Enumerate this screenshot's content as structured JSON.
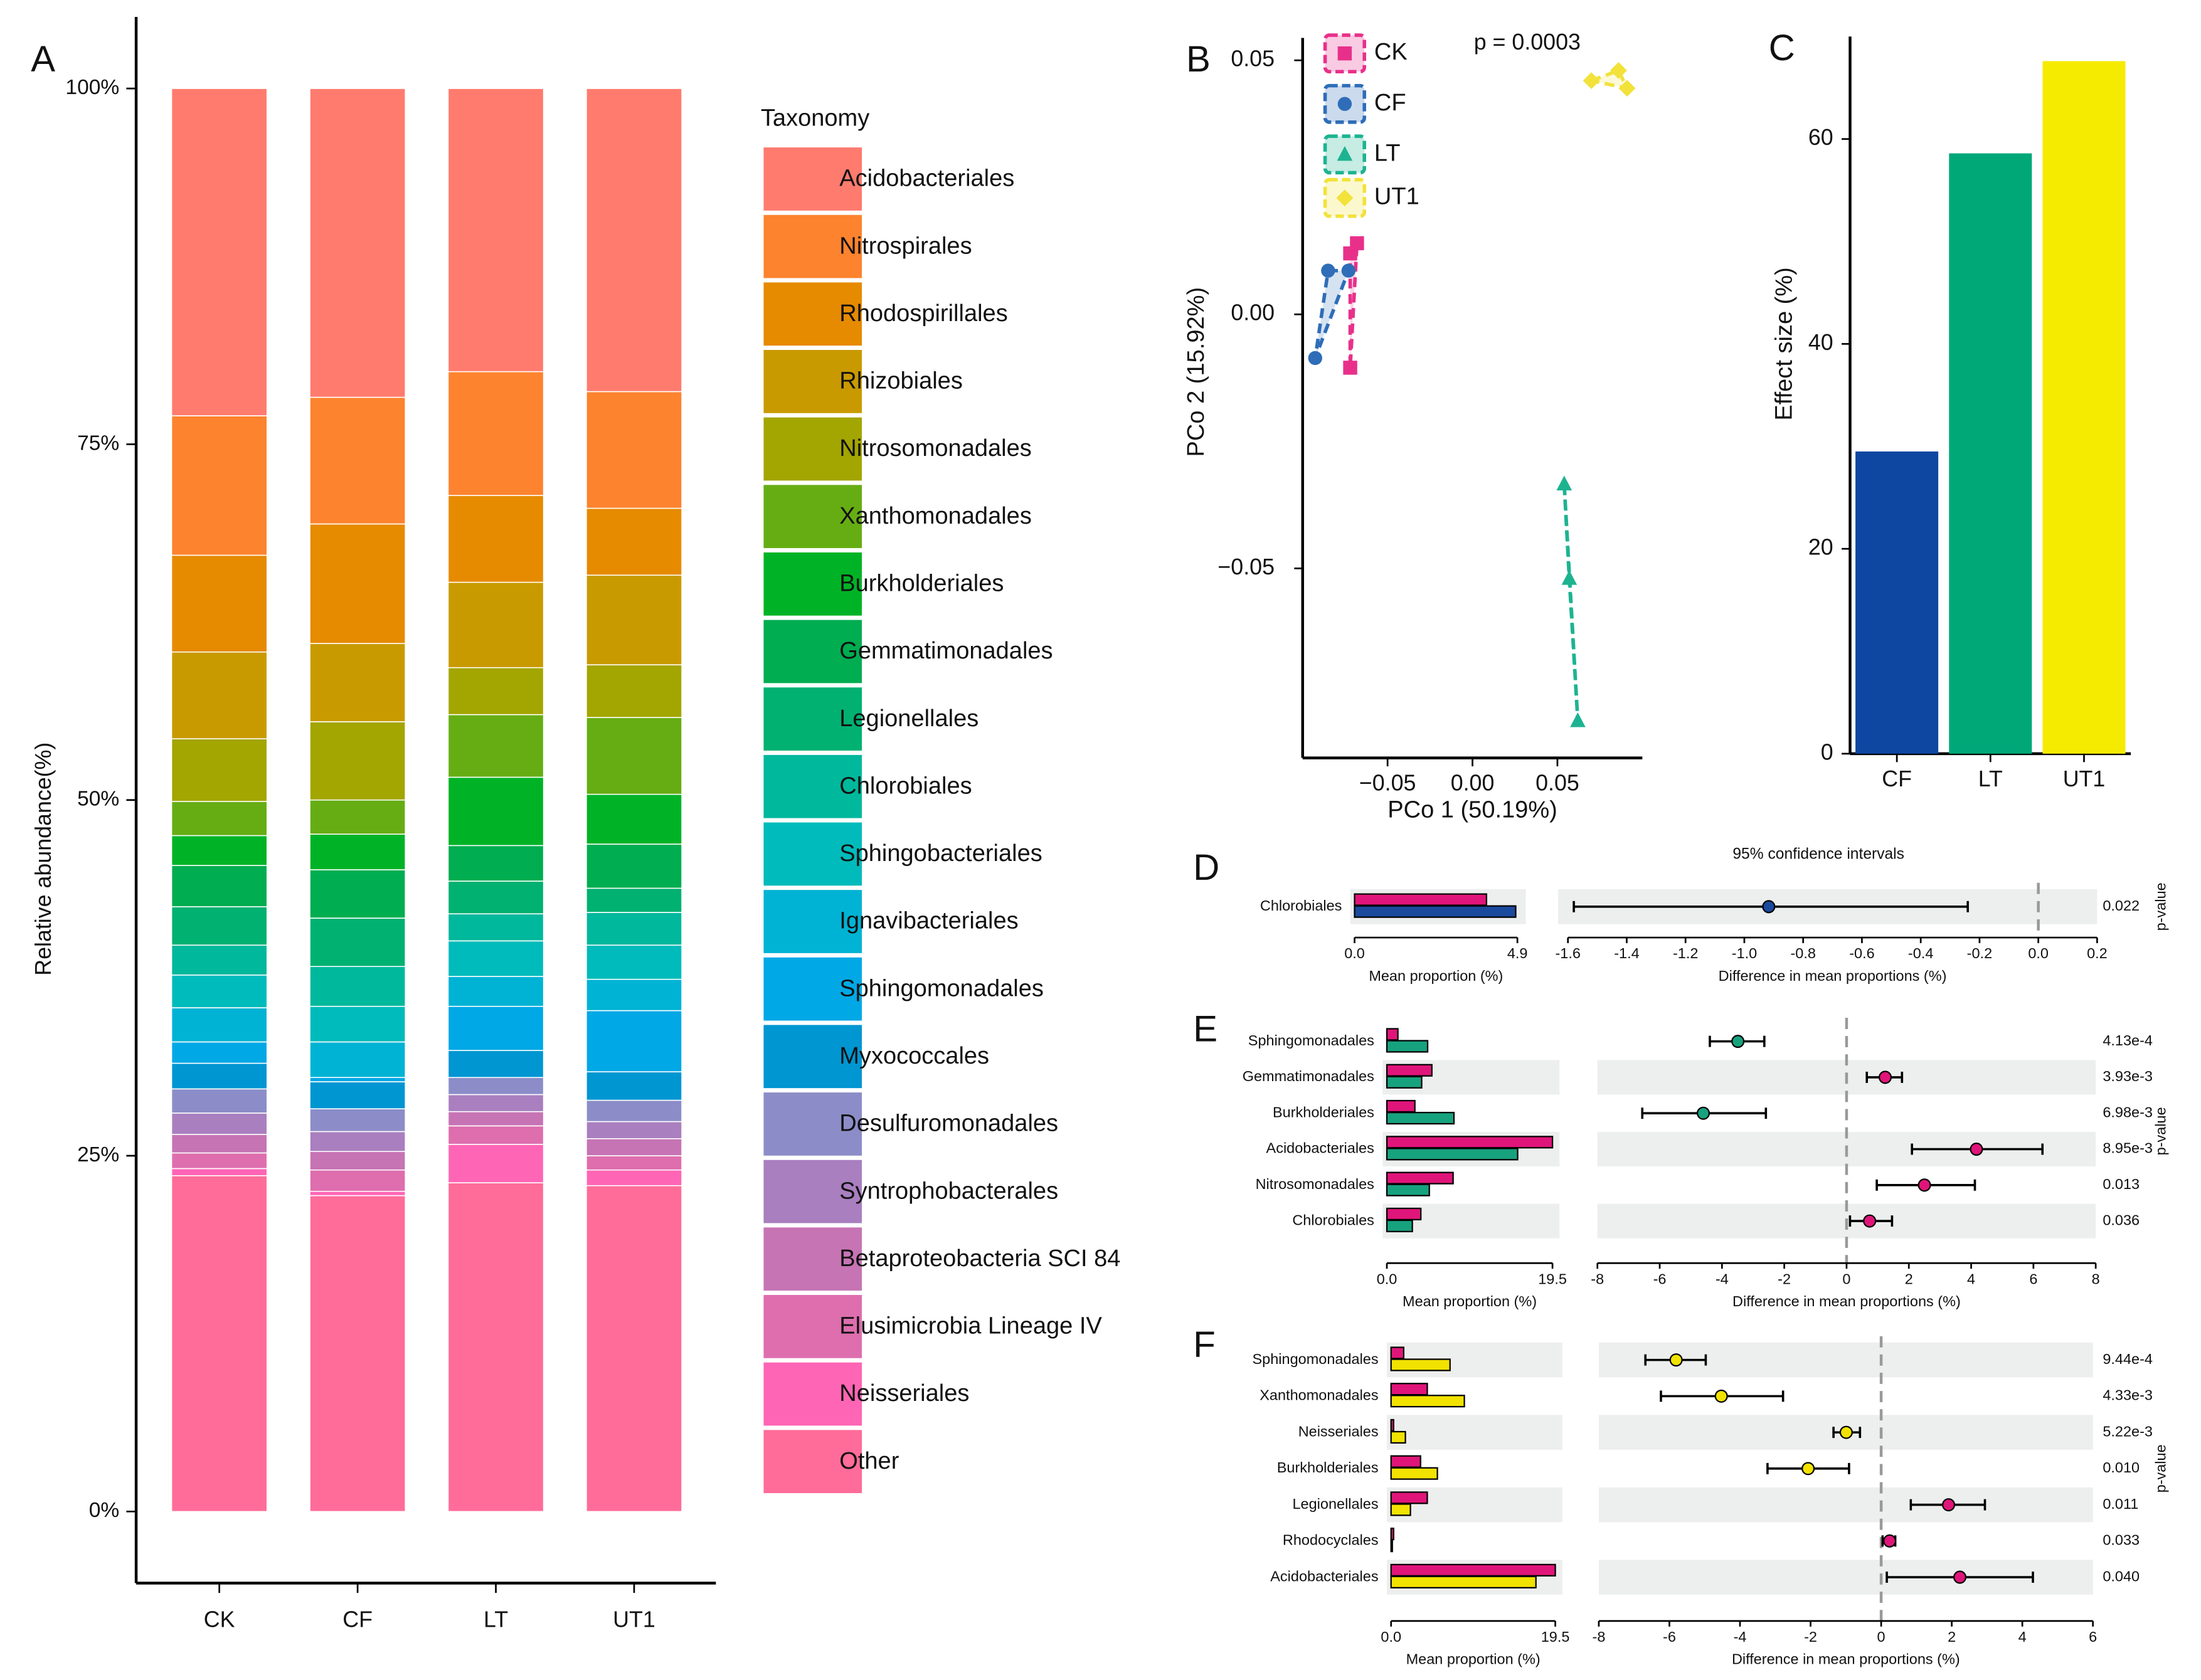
{
  "chart_data": [
    {
      "type": "stacked_bar",
      "panel_label": "A",
      "ylabel": "Relative abundance(%)",
      "legend_title": "Taxonomy",
      "categories": [
        "CK",
        "CF",
        "LT",
        "UT1"
      ],
      "ylim": [
        0,
        100
      ],
      "yticks": [
        {
          "value": 0,
          "label": "0%"
        },
        {
          "value": 25,
          "label": "25%"
        },
        {
          "value": 50,
          "label": "50%"
        },
        {
          "value": 75,
          "label": "75%"
        },
        {
          "value": 100,
          "label": "100%"
        }
      ],
      "series": [
        {
          "name": "Acidobacteriales",
          "color": "#FF7B6E",
          "values": [
            23.0,
            21.7,
            19.9,
            21.3
          ]
        },
        {
          "name": "Nitrospirales",
          "color": "#FD832E",
          "values": [
            9.8,
            8.9,
            8.7,
            8.2
          ]
        },
        {
          "name": "Rhodospirillales",
          "color": "#E68A00",
          "values": [
            6.8,
            8.4,
            6.1,
            4.7
          ]
        },
        {
          "name": "Rhizobiales",
          "color": "#C99A00",
          "values": [
            6.1,
            5.5,
            6.0,
            6.3
          ]
        },
        {
          "name": "Nitrosomonadales",
          "color": "#A3A500",
          "values": [
            4.4,
            5.5,
            3.3,
            3.7
          ]
        },
        {
          "name": "Xanthomonadales",
          "color": "#66AD14",
          "values": [
            2.4,
            2.4,
            4.4,
            5.4
          ]
        },
        {
          "name": "Burkholderiales",
          "color": "#00B326",
          "values": [
            2.1,
            2.5,
            4.8,
            3.5
          ]
        },
        {
          "name": "Gemmatimonadales",
          "color": "#00AD50",
          "values": [
            2.9,
            3.4,
            2.5,
            3.1
          ]
        },
        {
          "name": "Legionellales",
          "color": "#00B171",
          "values": [
            2.7,
            3.4,
            2.3,
            1.7
          ]
        },
        {
          "name": "Chlorobiales",
          "color": "#00B89C",
          "values": [
            2.1,
            2.8,
            1.9,
            2.3
          ]
        },
        {
          "name": "Sphingobacteriales",
          "color": "#00BBBB",
          "values": [
            2.3,
            2.5,
            2.5,
            2.4
          ]
        },
        {
          "name": "Ignavibacteriales",
          "color": "#00B3D4",
          "values": [
            2.4,
            2.5,
            2.1,
            2.2
          ]
        },
        {
          "name": "Sphingomonadales",
          "color": "#00A8E6",
          "values": [
            1.5,
            0.3,
            3.1,
            4.3
          ]
        },
        {
          "name": "Myxococcales",
          "color": "#0096D2",
          "values": [
            1.8,
            1.9,
            1.9,
            2.0
          ]
        },
        {
          "name": "Desulfuromonadales",
          "color": "#8C8DC8",
          "values": [
            1.7,
            1.6,
            1.2,
            1.5
          ]
        },
        {
          "name": "Syntrophobacterales",
          "color": "#A97FBF",
          "values": [
            1.5,
            1.4,
            1.2,
            1.2
          ]
        },
        {
          "name": "Betaproteobacteria SCI 84",
          "color": "#C674B4",
          "values": [
            1.3,
            1.3,
            1.0,
            1.2
          ]
        },
        {
          "name": "Elusimicrobia Lineage IV",
          "color": "#DE6EAE",
          "values": [
            1.1,
            1.5,
            1.3,
            1.0
          ]
        },
        {
          "name": "Neisseriales",
          "color": "#FF65B5",
          "values": [
            0.5,
            0.3,
            2.7,
            1.1
          ]
        },
        {
          "name": "Other",
          "color": "#FF6C99",
          "values": [
            23.6,
            22.2,
            23.1,
            22.9
          ]
        }
      ]
    },
    {
      "type": "scatter",
      "panel_label": "B",
      "xlabel": "PCo 1 (50.19%)",
      "ylabel": "PCo 2 (15.92%)",
      "annotation": "p = 0.0003",
      "xlim": [
        -0.1,
        0.1
      ],
      "ylim": [
        -0.0873,
        0.0544
      ],
      "xticks": [
        {
          "value": -0.05,
          "label": "−0.05"
        },
        {
          "value": 0,
          "label": "0.00"
        },
        0.05
      ],
      "yticks": [
        {
          "value": -0.05,
          "label": "−0.05"
        },
        {
          "value": 0,
          "label": "0.00"
        },
        0.05
      ],
      "series": [
        {
          "name": "CK",
          "color": "#E8308A",
          "marker": "square",
          "x": [
            -0.072,
            -0.068,
            -0.072
          ],
          "values": [
            0.012,
            0.014,
            -0.0105
          ]
        },
        {
          "name": "CF",
          "color": "#2F6DB8",
          "marker": "circle",
          "x": [
            -0.085,
            -0.073,
            -0.0926
          ],
          "values": [
            0.0086,
            0.0086,
            -0.0086
          ]
        },
        {
          "name": "LT",
          "color": "#1DB391",
          "marker": "triangle",
          "x": [
            0.054,
            0.057,
            0.062
          ],
          "values": [
            -0.0334,
            -0.052,
            -0.08
          ]
        },
        {
          "name": "UT1",
          "color": "#F2E23A",
          "marker": "diamond",
          "x": [
            0.07,
            0.086,
            0.091
          ],
          "values": [
            0.046,
            0.048,
            0.0445
          ]
        }
      ]
    },
    {
      "type": "bar",
      "panel_label": "C",
      "ylabel": "Effect size (%)",
      "categories": [
        "CF",
        "LT",
        "UT1"
      ],
      "values": [
        29.5,
        58.6,
        67.6
      ],
      "colors": [
        "#0D47A1",
        "#00A878",
        "#F5EB00"
      ],
      "ylim": [
        0,
        70
      ],
      "yticks": [
        0,
        20,
        40,
        60
      ]
    },
    {
      "type": "extended_error_bar",
      "panel_label": "D",
      "title": "95% confidence intervals",
      "categories": [
        "Chlorobiales"
      ],
      "series": [
        {
          "color": "#E0157A",
          "values": [
            3.97
          ]
        },
        {
          "color": "#1A4A9E",
          "values": [
            4.85
          ]
        }
      ],
      "mean_label": "Mean proportion (%)",
      "mean_xlim": [
        0,
        4.9
      ],
      "mean_xticks": [
        {
          "value": 0,
          "label": "0.0"
        },
        4.9
      ],
      "diff_label": "Difference in mean proportions (%)",
      "diff_xlim": [
        -1.6,
        0.2
      ],
      "diff_xticks": [
        -1.6,
        -1.4,
        -1.2,
        {
          "value": -1,
          "label": "-1.0"
        },
        -0.8,
        -0.6,
        -0.4,
        -0.2,
        {
          "value": 0,
          "label": "0.0"
        },
        0.2
      ],
      "differences": [
        -0.917
      ],
      "ci_low": [
        -1.58
      ],
      "ci_high": [
        -0.24
      ],
      "p_label": "p-value",
      "p_values": [
        0.022
      ]
    },
    {
      "type": "extended_error_bar",
      "panel_label": "E",
      "categories": [
        "Sphingomonadales",
        "Gemmatimonadales",
        "Burkholderiales",
        "Acidobacteriales",
        "Nitrosomonadales",
        "Chlorobiales"
      ],
      "series": [
        {
          "color": "#E0157A",
          "values": [
            1.3,
            5.3,
            3.3,
            19.5,
            7.8,
            4.0
          ]
        },
        {
          "color": "#17A27E",
          "values": [
            4.8,
            4.1,
            7.9,
            15.4,
            5.0,
            3.0
          ]
        }
      ],
      "mean_label": "Mean proportion (%)",
      "mean_xlim": [
        0,
        19.5
      ],
      "mean_xticks": [
        {
          "value": 0,
          "label": "0.0"
        },
        19.5
      ],
      "diff_label": "Difference in mean proportions (%)",
      "diff_xlim": [
        -8,
        8
      ],
      "diff_xticks": [
        -8,
        -6,
        -4,
        -2,
        0,
        2,
        4,
        6,
        8
      ],
      "differences": [
        -3.49,
        1.24,
        -4.6,
        4.17,
        2.5,
        0.74
      ],
      "ci_low": [
        -4.39,
        0.65,
        -6.56,
        2.1,
        0.97,
        0.11
      ],
      "ci_high": [
        -2.64,
        1.78,
        -2.59,
        6.29,
        4.12,
        1.46
      ],
      "p_label": "p-value",
      "p_values": [
        {
          "value": 0.000413,
          "label": "4.13e-4"
        },
        {
          "value": 0.00393,
          "label": "3.93e-3"
        },
        {
          "value": 0.00698,
          "label": "6.98e-3"
        },
        {
          "value": 0.00895,
          "label": "8.95e-3"
        },
        0.013,
        0.036
      ]
    },
    {
      "type": "extended_error_bar",
      "panel_label": "F",
      "categories": [
        "Sphingomonadales",
        "Xanthomonadales",
        "Neisseriales",
        "Burkholderiales",
        "Legionellales",
        "Rhodocyclales",
        "Acidobacteriales"
      ],
      "series": [
        {
          "color": "#E0157A",
          "values": [
            1.5,
            4.3,
            0.3,
            3.5,
            4.3,
            0.3,
            19.5
          ]
        },
        {
          "color": "#F2E200",
          "values": [
            7.0,
            8.7,
            1.7,
            5.5,
            2.3,
            0.15,
            17.2
          ]
        }
      ],
      "mean_label": "Mean proportion (%)",
      "mean_xlim": [
        0,
        19.5
      ],
      "mean_xticks": [
        {
          "value": 0,
          "label": "0.0"
        },
        19.5
      ],
      "diff_label": "Difference in mean proportions (%)",
      "diff_xlim": [
        -8,
        6
      ],
      "diff_xticks": [
        -8,
        -6,
        -4,
        -2,
        0,
        2,
        4,
        6
      ],
      "differences": [
        -5.81,
        -4.53,
        -0.99,
        -2.07,
        1.91,
        0.24,
        2.23
      ],
      "ci_low": [
        -6.68,
        -6.24,
        -1.35,
        -3.22,
        0.84,
        0.04,
        0.16
      ],
      "ci_high": [
        -4.97,
        -2.78,
        -0.6,
        -0.91,
        2.94,
        0.4,
        4.3
      ],
      "p_label": "p-value",
      "p_values": [
        {
          "value": 0.000944,
          "label": "9.44e-4"
        },
        {
          "value": 0.00433,
          "label": "4.33e-3"
        },
        {
          "value": 0.00522,
          "label": "5.22e-3"
        },
        {
          "value": 0.01,
          "label": "0.010"
        },
        0.011,
        0.033,
        {
          "value": 0.04,
          "label": "0.040"
        }
      ]
    }
  ]
}
